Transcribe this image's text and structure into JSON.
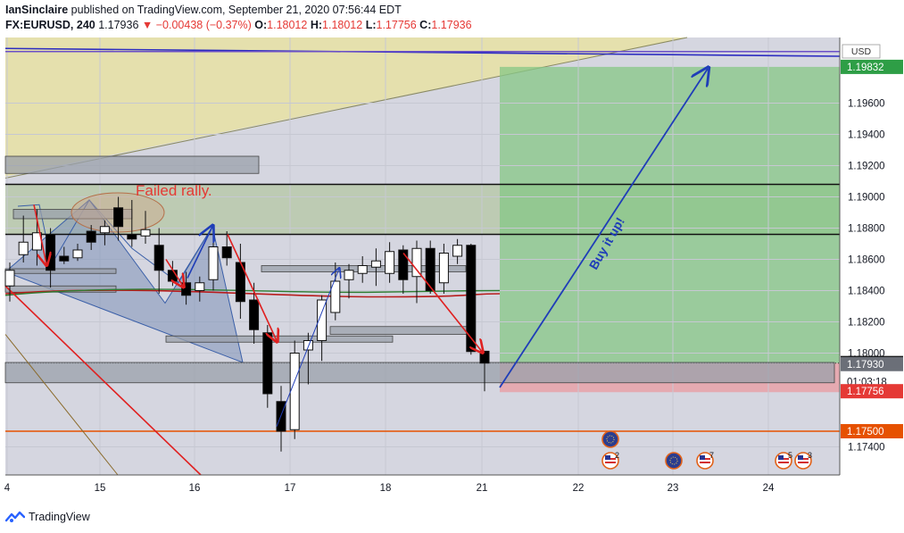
{
  "header": {
    "line1": {
      "user": "IanSinclaire",
      "rest": " published on TradingView.com, September 21, 2020 07:56:44 EDT"
    },
    "line2": {
      "symbol": "FX:EURUSD, 240",
      "last": "1.17936",
      "change": "▼ −0.00438 (−0.37%)",
      "o_label": "O:",
      "o_value": "1.18012",
      "h_label": "H:",
      "h_value": "1.18012",
      "l_label": "L:",
      "l_value": "1.17756",
      "c_label": "C:",
      "c_value": "1.17936"
    }
  },
  "footer": {
    "brand": "TradingView"
  },
  "colors": {
    "up": "#ffffff",
    "down": "#000000",
    "target_zone": "#86c786",
    "stop_zone": "#e8a2a8",
    "axis_text": "#131722",
    "arrow_red": "#e02020",
    "arrow_blue": "#1f3db8",
    "ma_red": "#b71c1c",
    "ma_green": "#2e7d32"
  },
  "chart_data": {
    "type": "candlestick",
    "currency": "USD",
    "y_range": [
      1.1722,
      1.2002
    ],
    "y_ticks": [
      {
        "v": 1.196,
        "label": "1.19600"
      },
      {
        "v": 1.194,
        "label": "1.19400"
      },
      {
        "v": 1.192,
        "label": "1.19200"
      },
      {
        "v": 1.19,
        "label": "1.19000"
      },
      {
        "v": 1.188,
        "label": "1.18800"
      },
      {
        "v": 1.186,
        "label": "1.18600"
      },
      {
        "v": 1.184,
        "label": "1.18400"
      },
      {
        "v": 1.182,
        "label": "1.18200"
      },
      {
        "v": 1.18,
        "label": "1.18000"
      },
      {
        "v": 1.174,
        "label": "1.17400"
      }
    ],
    "price_tags": [
      {
        "v": 1.19832,
        "label": "1.19832",
        "bg": "#2e9e46",
        "fg": "#ffffff"
      },
      {
        "v": 1.17936,
        "label": "1.17936",
        "bg": "#000000",
        "fg": "#ffffff"
      },
      {
        "v": 1.17818,
        "label": "01:03:18",
        "bg": "#ffffff",
        "fg": "#131722"
      },
      {
        "v": 1.1793,
        "label": "1.17930",
        "bg": "#6b6f78",
        "fg": "#ffffff"
      },
      {
        "v": 1.17756,
        "label": "1.17756",
        "bg": "#e53935",
        "fg": "#ffffff"
      },
      {
        "v": 1.175,
        "label": "1.17500",
        "bg": "#e65100",
        "fg": "#ffffff"
      }
    ],
    "x_axis": [
      {
        "label": "4",
        "day": 14
      },
      {
        "label": "15",
        "day": 15
      },
      {
        "label": "16",
        "day": 16
      },
      {
        "label": "17",
        "day": 17
      },
      {
        "label": "18",
        "day": 18
      },
      {
        "label": "21",
        "day": 19
      },
      {
        "label": "22",
        "day": 20
      },
      {
        "label": "23",
        "day": 21
      },
      {
        "label": "24",
        "day": 22
      }
    ],
    "candles": [
      {
        "o": 1.1843,
        "h": 1.1858,
        "l": 1.1833,
        "c": 1.1853
      },
      {
        "o": 1.1863,
        "h": 1.1888,
        "l": 1.1858,
        "c": 1.1871
      },
      {
        "o": 1.1866,
        "h": 1.1892,
        "l": 1.1856,
        "c": 1.1877
      },
      {
        "o": 1.1876,
        "h": 1.188,
        "l": 1.1842,
        "c": 1.1853
      },
      {
        "o": 1.1862,
        "h": 1.1868,
        "l": 1.1857,
        "c": 1.1859
      },
      {
        "o": 1.1861,
        "h": 1.187,
        "l": 1.1859,
        "c": 1.1866
      },
      {
        "o": 1.1878,
        "h": 1.1882,
        "l": 1.1866,
        "c": 1.1871
      },
      {
        "o": 1.1877,
        "h": 1.1885,
        "l": 1.1869,
        "c": 1.1881
      },
      {
        "o": 1.1893,
        "h": 1.19,
        "l": 1.1872,
        "c": 1.1881
      },
      {
        "o": 1.1876,
        "h": 1.1898,
        "l": 1.1868,
        "c": 1.1873
      },
      {
        "o": 1.1875,
        "h": 1.1891,
        "l": 1.187,
        "c": 1.1879
      },
      {
        "o": 1.1869,
        "h": 1.188,
        "l": 1.1838,
        "c": 1.1853
      },
      {
        "o": 1.1853,
        "h": 1.1859,
        "l": 1.1843,
        "c": 1.1846
      },
      {
        "o": 1.1845,
        "h": 1.1852,
        "l": 1.1831,
        "c": 1.1837
      },
      {
        "o": 1.184,
        "h": 1.1849,
        "l": 1.1833,
        "c": 1.1845
      },
      {
        "o": 1.1847,
        "h": 1.1877,
        "l": 1.184,
        "c": 1.1868
      },
      {
        "o": 1.1868,
        "h": 1.1878,
        "l": 1.1856,
        "c": 1.1861
      },
      {
        "o": 1.1858,
        "h": 1.187,
        "l": 1.1822,
        "c": 1.1833
      },
      {
        "o": 1.1834,
        "h": 1.1845,
        "l": 1.1806,
        "c": 1.1815
      },
      {
        "o": 1.1813,
        "h": 1.1818,
        "l": 1.1765,
        "c": 1.1774
      },
      {
        "o": 1.1769,
        "h": 1.1779,
        "l": 1.1737,
        "c": 1.175
      },
      {
        "o": 1.1751,
        "h": 1.1808,
        "l": 1.1745,
        "c": 1.18
      },
      {
        "o": 1.1802,
        "h": 1.1813,
        "l": 1.178,
        "c": 1.1808
      },
      {
        "o": 1.1808,
        "h": 1.1837,
        "l": 1.1795,
        "c": 1.1834
      },
      {
        "o": 1.1826,
        "h": 1.1858,
        "l": 1.1821,
        "c": 1.1846
      },
      {
        "o": 1.1847,
        "h": 1.1857,
        "l": 1.1835,
        "c": 1.1853
      },
      {
        "o": 1.1851,
        "h": 1.1862,
        "l": 1.1845,
        "c": 1.1856
      },
      {
        "o": 1.1855,
        "h": 1.1867,
        "l": 1.1843,
        "c": 1.1859
      },
      {
        "o": 1.1851,
        "h": 1.1871,
        "l": 1.1845,
        "c": 1.1865
      },
      {
        "o": 1.1866,
        "h": 1.1869,
        "l": 1.1838,
        "c": 1.1847
      },
      {
        "o": 1.1849,
        "h": 1.1872,
        "l": 1.1832,
        "c": 1.1867
      },
      {
        "o": 1.1867,
        "h": 1.1872,
        "l": 1.1838,
        "c": 1.184
      },
      {
        "o": 1.1845,
        "h": 1.187,
        "l": 1.1838,
        "c": 1.1864
      },
      {
        "o": 1.1862,
        "h": 1.1873,
        "l": 1.1857,
        "c": 1.1869
      },
      {
        "o": 1.1869,
        "h": 1.187,
        "l": 1.1799,
        "c": 1.1801
      },
      {
        "o": 1.18012,
        "h": 1.18012,
        "l": 1.17756,
        "c": 1.17936
      }
    ],
    "annotations": [
      {
        "text": "Failed rally.",
        "color": "#e53935"
      },
      {
        "text": "Buy it up!",
        "color": "#1f3db8"
      }
    ],
    "events": [
      {
        "type": "eu",
        "count": ""
      },
      {
        "type": "us",
        "count": "2"
      },
      {
        "type": "eu",
        "count": ""
      },
      {
        "type": "us",
        "count": "7"
      },
      {
        "type": "us",
        "count": "5"
      },
      {
        "type": "us",
        "count": "3"
      }
    ],
    "levels": {
      "target": 1.19832,
      "entry": 1.17936,
      "stop": 1.1775,
      "resistance_1": 1.1908,
      "resistance_2": 1.1876,
      "support_orange": 1.175
    }
  }
}
